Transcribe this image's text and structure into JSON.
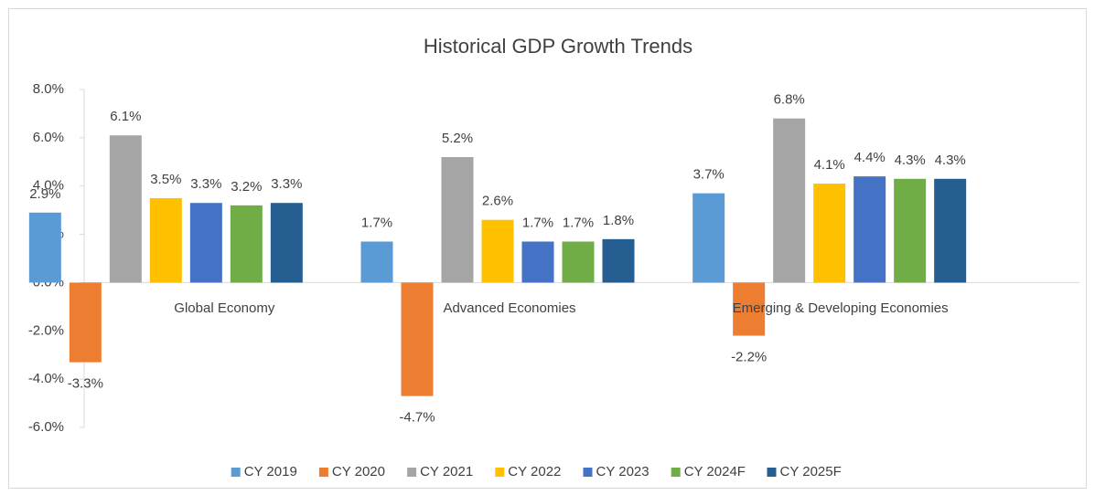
{
  "chart_data": {
    "type": "bar",
    "title": "Historical GDP Growth Trends",
    "categories": [
      "Global Economy",
      "Advanced Economies",
      "Emerging & Developing Economies"
    ],
    "series": [
      {
        "name": "CY 2019",
        "color": "#5b9bd5",
        "values": [
          2.9,
          1.7,
          3.7
        ],
        "value_labels": [
          "2.9%",
          "1.7%",
          "3.7%"
        ]
      },
      {
        "name": "CY 2020",
        "color": "#ed7d31",
        "values": [
          -3.3,
          -4.7,
          -2.2
        ],
        "value_labels": [
          "-3.3%",
          "-4.7%",
          "-2.2%"
        ]
      },
      {
        "name": "CY 2021",
        "color": "#a5a5a5",
        "values": [
          6.1,
          5.2,
          6.8
        ],
        "value_labels": [
          "6.1%",
          "5.2%",
          "6.8%"
        ]
      },
      {
        "name": "CY 2022",
        "color": "#ffc000",
        "values": [
          3.5,
          2.6,
          4.1
        ],
        "value_labels": [
          "3.5%",
          "2.6%",
          "4.1%"
        ]
      },
      {
        "name": "CY 2023",
        "color": "#4472c4",
        "values": [
          3.3,
          1.7,
          4.4
        ],
        "value_labels": [
          "3.3%",
          "1.7%",
          "4.4%"
        ]
      },
      {
        "name": "CY 2024F",
        "color": "#70ad47",
        "values": [
          3.2,
          1.7,
          4.3
        ],
        "value_labels": [
          "3.2%",
          "1.7%",
          "4.3%"
        ]
      },
      {
        "name": "CY 2025F",
        "color": "#255e91",
        "values": [
          3.3,
          1.8,
          4.3
        ],
        "value_labels": [
          "3.3%",
          "1.8%",
          "4.3%"
        ]
      }
    ],
    "ylim": [
      -6,
      8
    ],
    "yticks": [
      {
        "value": -6,
        "label": "-6.0%"
      },
      {
        "value": -4,
        "label": "-4.0%"
      },
      {
        "value": -2,
        "label": "-2.0%"
      },
      {
        "value": 0,
        "label": "0.0%"
      },
      {
        "value": 2,
        "label": "2.0%"
      },
      {
        "value": 4,
        "label": "4.0%"
      },
      {
        "value": 6,
        "label": "6.0%"
      },
      {
        "value": 8,
        "label": "8.0%"
      }
    ],
    "legend": "bottom"
  }
}
